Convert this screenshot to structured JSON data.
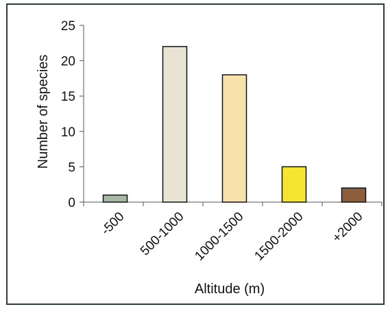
{
  "chart_data": {
    "type": "bar",
    "title": "",
    "xlabel": "Altitude (m)",
    "ylabel": "Number of species",
    "categories": [
      "-500",
      "500-1000",
      "1000-1500",
      "1500-2000",
      "+2000"
    ],
    "values": [
      1,
      22,
      18,
      5,
      2
    ],
    "colors": [
      "#a7b8a5",
      "#e8e3d3",
      "#f7e2ab",
      "#f4e531",
      "#8b5f3b"
    ],
    "bar_edge_color": "#111111",
    "ylim": [
      0,
      25
    ],
    "yticks": [
      0,
      5,
      10,
      15,
      20,
      25
    ],
    "grid": false,
    "legend": "none"
  }
}
